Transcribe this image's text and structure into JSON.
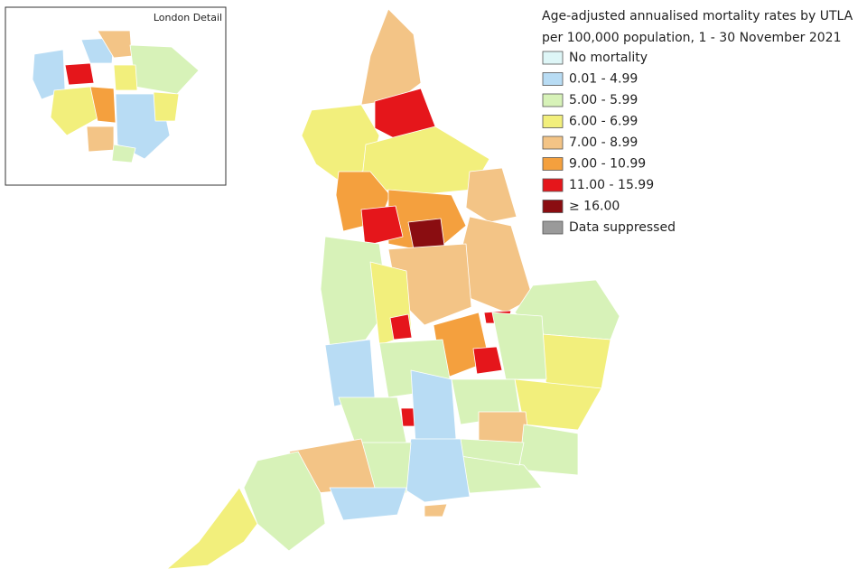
{
  "title": [
    "Age-adjusted annualised mortality rates by UTLA",
    "per 100,000 population, 1 - 30 November 2021"
  ],
  "inset_title": "London Detail",
  "legend": [
    {
      "label": "No mortality",
      "color": "#def6f7"
    },
    {
      "label": "0.01 - 4.99",
      "color": "#b8dcf4"
    },
    {
      "label": "5.00 - 5.99",
      "color": "#d7f2b8"
    },
    {
      "label": "6.00 - 6.99",
      "color": "#f2ef7c"
    },
    {
      "label": "7.00 - 8.99",
      "color": "#f3c486"
    },
    {
      "label": "9.00 - 10.99",
      "color": "#f4a03e"
    },
    {
      "label": "11.00 - 15.99",
      "color": "#e5161b"
    },
    {
      "label": "≥ 16.00",
      "color": "#8a0d11"
    },
    {
      "label": "Data suppressed",
      "color": "#9a9a9a"
    }
  ]
}
